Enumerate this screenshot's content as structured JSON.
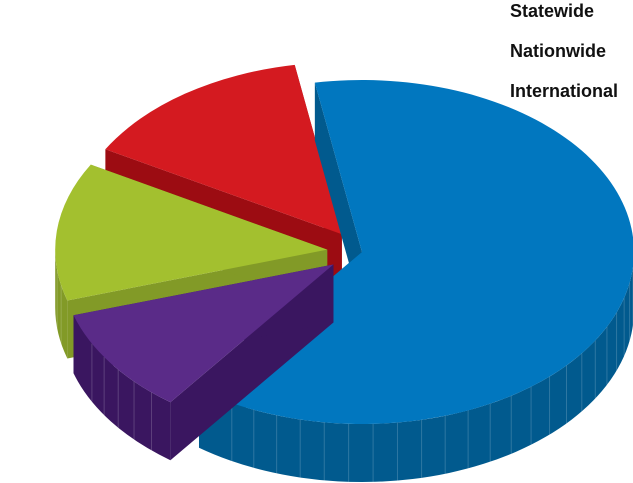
{
  "chart_data": {
    "type": "pie",
    "style": "3d-exploded",
    "slices": [
      {
        "label": "",
        "value": 63,
        "color": "#0177bf",
        "side": "#015a8e",
        "explode": 0.0
      },
      {
        "label": "",
        "value": 10,
        "color": "#5a2b88",
        "side": "#3a1660",
        "explode": 0.35
      },
      {
        "label": "",
        "value": 13,
        "color": "#a3c02f",
        "side": "#829a27",
        "explode": 0.35
      },
      {
        "label": "",
        "value": 14,
        "color": "#d41a20",
        "side": "#9c0c12",
        "explode": 0.35
      }
    ],
    "legend": {
      "position": "top-right",
      "entries": [
        "Statewide",
        "Nationwide",
        "International"
      ]
    }
  }
}
